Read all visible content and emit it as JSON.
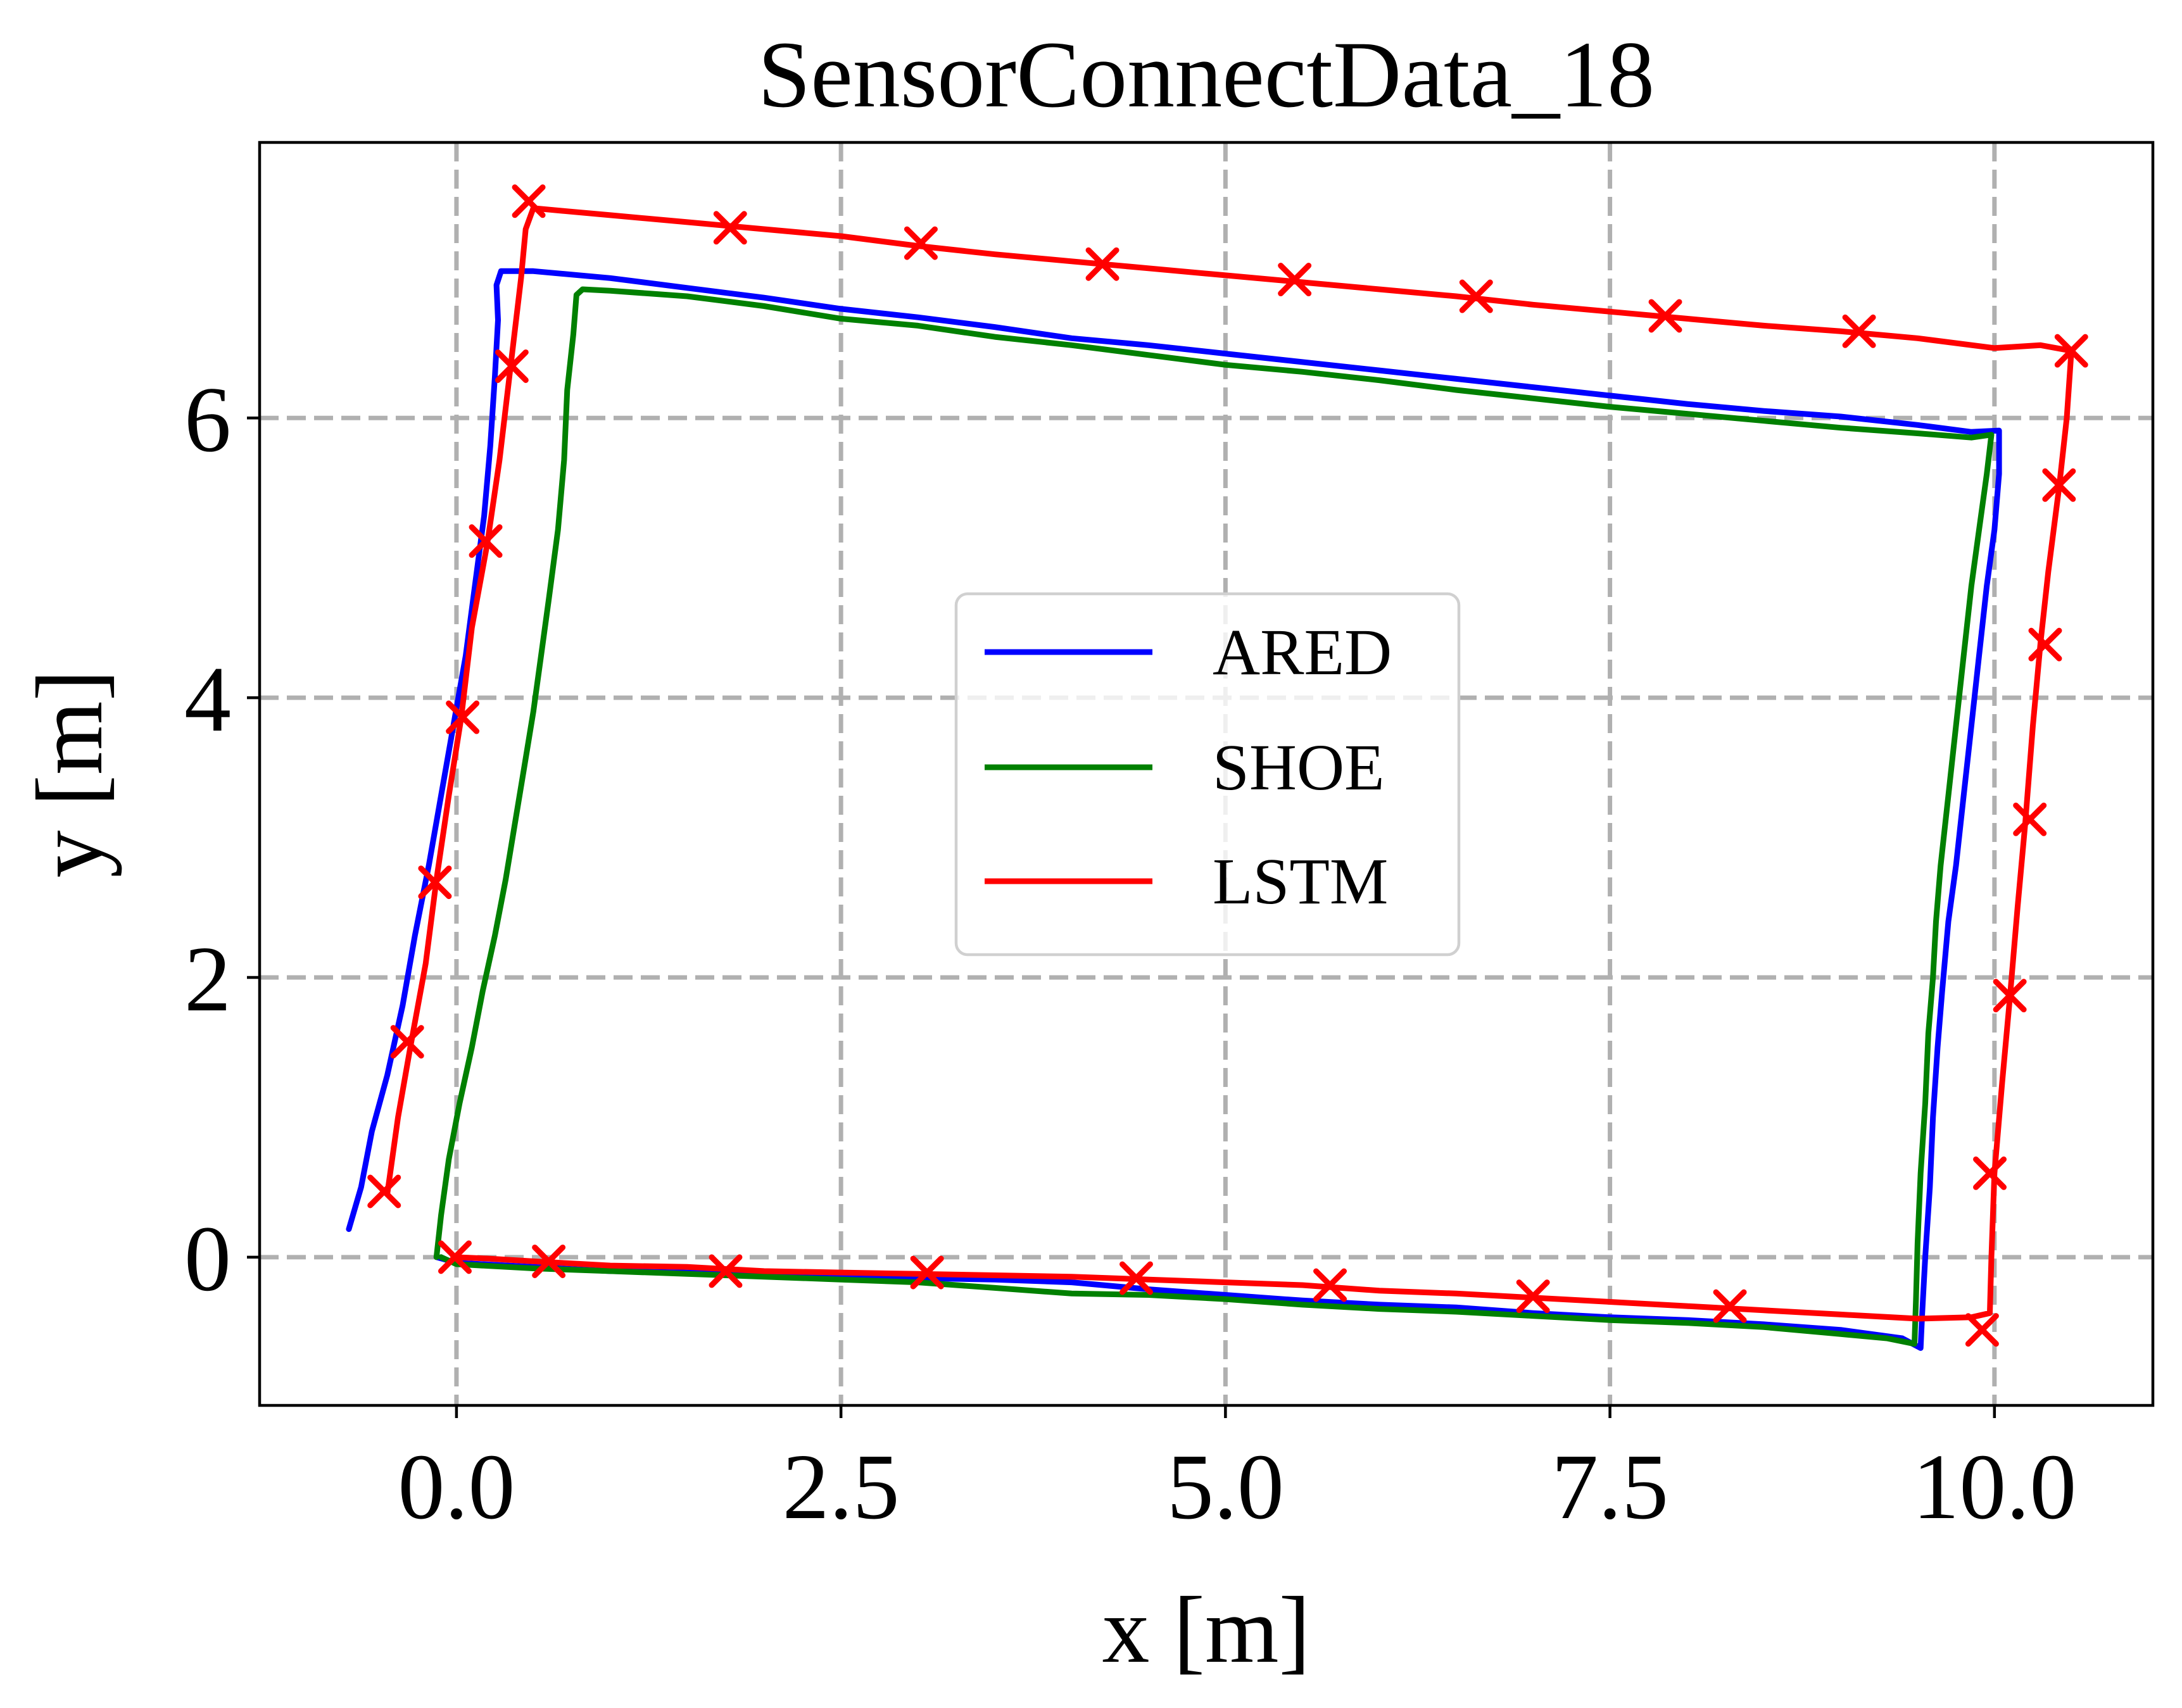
{
  "chart_data": {
    "type": "line",
    "title": "SensorConnectData_18",
    "xlabel": "x [m]",
    "ylabel": "y [m]",
    "xlim": [
      -1.28,
      11.03
    ],
    "ylim": [
      -1.06,
      7.97
    ],
    "xticks": [
      0.0,
      2.5,
      5.0,
      7.5,
      10.0
    ],
    "xtick_labels": [
      "0.0",
      "2.5",
      "5.0",
      "7.5",
      "10.0"
    ],
    "yticks": [
      0,
      2,
      4,
      6
    ],
    "ytick_labels": [
      "0",
      "2",
      "4",
      "6"
    ],
    "grid": true,
    "legend": "center",
    "series": [
      {
        "name": "ARED",
        "color": "#0000ff",
        "marker": "none",
        "points": [
          [
            -0.7,
            0.2
          ],
          [
            -0.62,
            0.5
          ],
          [
            -0.55,
            0.9
          ],
          [
            -0.45,
            1.3
          ],
          [
            -0.35,
            1.8
          ],
          [
            -0.27,
            2.3
          ],
          [
            -0.18,
            2.8
          ],
          [
            -0.1,
            3.3
          ],
          [
            -0.02,
            3.8
          ],
          [
            0.06,
            4.3
          ],
          [
            0.12,
            4.8
          ],
          [
            0.18,
            5.3
          ],
          [
            0.22,
            5.8
          ],
          [
            0.25,
            6.3
          ],
          [
            0.27,
            6.7
          ],
          [
            0.26,
            6.95
          ],
          [
            0.29,
            7.05
          ],
          [
            0.5,
            7.05
          ],
          [
            1.0,
            7.0
          ],
          [
            1.5,
            6.93
          ],
          [
            2.0,
            6.86
          ],
          [
            2.5,
            6.78
          ],
          [
            3.0,
            6.72
          ],
          [
            3.5,
            6.65
          ],
          [
            4.0,
            6.57
          ],
          [
            4.5,
            6.52
          ],
          [
            5.0,
            6.46
          ],
          [
            5.5,
            6.4
          ],
          [
            6.0,
            6.34
          ],
          [
            6.5,
            6.28
          ],
          [
            7.0,
            6.22
          ],
          [
            7.5,
            6.16
          ],
          [
            8.0,
            6.1
          ],
          [
            8.5,
            6.05
          ],
          [
            9.0,
            6.01
          ],
          [
            9.5,
            5.95
          ],
          [
            9.85,
            5.9
          ],
          [
            10.03,
            5.91
          ],
          [
            10.03,
            5.6
          ],
          [
            10.0,
            5.2
          ],
          [
            9.95,
            4.8
          ],
          [
            9.9,
            4.3
          ],
          [
            9.85,
            3.8
          ],
          [
            9.8,
            3.3
          ],
          [
            9.75,
            2.8
          ],
          [
            9.7,
            2.4
          ],
          [
            9.66,
            1.9
          ],
          [
            9.63,
            1.5
          ],
          [
            9.6,
            1.0
          ],
          [
            9.58,
            0.5
          ],
          [
            9.55,
            0.0
          ],
          [
            9.53,
            -0.4
          ],
          [
            9.52,
            -0.65
          ],
          [
            9.4,
            -0.58
          ],
          [
            9.0,
            -0.52
          ],
          [
            8.5,
            -0.48
          ],
          [
            8.0,
            -0.45
          ],
          [
            7.5,
            -0.43
          ],
          [
            7.0,
            -0.4
          ],
          [
            6.5,
            -0.36
          ],
          [
            6.0,
            -0.34
          ],
          [
            5.5,
            -0.31
          ],
          [
            5.0,
            -0.27
          ],
          [
            4.5,
            -0.23
          ],
          [
            4.0,
            -0.18
          ],
          [
            3.5,
            -0.16
          ],
          [
            3.0,
            -0.15
          ],
          [
            2.5,
            -0.13
          ],
          [
            2.0,
            -0.12
          ],
          [
            1.5,
            -0.11
          ],
          [
            1.0,
            -0.1
          ],
          [
            0.5,
            -0.07
          ],
          [
            0.0,
            -0.04
          ],
          [
            -0.13,
            0.0
          ]
        ]
      },
      {
        "name": "SHOE",
        "color": "#008000",
        "marker": "none",
        "points": [
          [
            -0.13,
            0.0
          ],
          [
            -0.1,
            0.3
          ],
          [
            -0.05,
            0.7
          ],
          [
            0.02,
            1.1
          ],
          [
            0.1,
            1.5
          ],
          [
            0.17,
            1.9
          ],
          [
            0.25,
            2.3
          ],
          [
            0.32,
            2.7
          ],
          [
            0.38,
            3.1
          ],
          [
            0.44,
            3.5
          ],
          [
            0.5,
            3.9
          ],
          [
            0.55,
            4.3
          ],
          [
            0.6,
            4.7
          ],
          [
            0.66,
            5.2
          ],
          [
            0.7,
            5.7
          ],
          [
            0.72,
            6.2
          ],
          [
            0.76,
            6.6
          ],
          [
            0.78,
            6.88
          ],
          [
            0.82,
            6.92
          ],
          [
            1.0,
            6.91
          ],
          [
            1.5,
            6.87
          ],
          [
            2.0,
            6.8
          ],
          [
            2.5,
            6.71
          ],
          [
            3.0,
            6.66
          ],
          [
            3.5,
            6.58
          ],
          [
            4.0,
            6.52
          ],
          [
            4.5,
            6.45
          ],
          [
            5.0,
            6.38
          ],
          [
            5.5,
            6.33
          ],
          [
            6.0,
            6.27
          ],
          [
            6.5,
            6.2
          ],
          [
            7.0,
            6.14
          ],
          [
            7.5,
            6.08
          ],
          [
            8.0,
            6.03
          ],
          [
            8.5,
            5.98
          ],
          [
            9.0,
            5.93
          ],
          [
            9.5,
            5.89
          ],
          [
            9.85,
            5.86
          ],
          [
            9.98,
            5.88
          ],
          [
            9.95,
            5.6
          ],
          [
            9.9,
            5.2
          ],
          [
            9.85,
            4.8
          ],
          [
            9.8,
            4.3
          ],
          [
            9.75,
            3.8
          ],
          [
            9.7,
            3.3
          ],
          [
            9.65,
            2.8
          ],
          [
            9.62,
            2.4
          ],
          [
            9.6,
            2.0
          ],
          [
            9.57,
            1.6
          ],
          [
            9.55,
            1.1
          ],
          [
            9.52,
            0.6
          ],
          [
            9.5,
            0.1
          ],
          [
            9.49,
            -0.3
          ],
          [
            9.48,
            -0.62
          ],
          [
            9.3,
            -0.58
          ],
          [
            9.0,
            -0.55
          ],
          [
            8.5,
            -0.5
          ],
          [
            8.0,
            -0.47
          ],
          [
            7.5,
            -0.45
          ],
          [
            7.0,
            -0.42
          ],
          [
            6.5,
            -0.39
          ],
          [
            6.0,
            -0.37
          ],
          [
            5.5,
            -0.34
          ],
          [
            5.0,
            -0.3
          ],
          [
            4.5,
            -0.27
          ],
          [
            4.0,
            -0.26
          ],
          [
            3.5,
            -0.22
          ],
          [
            3.0,
            -0.18
          ],
          [
            2.5,
            -0.16
          ],
          [
            2.0,
            -0.14
          ],
          [
            1.5,
            -0.12
          ],
          [
            1.0,
            -0.1
          ],
          [
            0.5,
            -0.08
          ],
          [
            0.0,
            -0.05
          ],
          [
            -0.1,
            0.0
          ]
        ]
      },
      {
        "name": "LSTM",
        "color": "#ff0000",
        "marker": "x",
        "points": [
          [
            -0.45,
            0.45
          ],
          [
            -0.38,
            1.0
          ],
          [
            -0.3,
            1.5
          ],
          [
            -0.2,
            2.1
          ],
          [
            -0.13,
            2.7
          ],
          [
            -0.05,
            3.3
          ],
          [
            0.03,
            3.85
          ],
          [
            0.1,
            4.5
          ],
          [
            0.2,
            5.1
          ],
          [
            0.28,
            5.7
          ],
          [
            0.35,
            6.35
          ],
          [
            0.42,
            7.0
          ],
          [
            0.45,
            7.35
          ],
          [
            0.5,
            7.5
          ],
          [
            0.7,
            7.48
          ],
          [
            1.0,
            7.45
          ],
          [
            1.5,
            7.4
          ],
          [
            2.0,
            7.35
          ],
          [
            2.5,
            7.3
          ],
          [
            3.0,
            7.23
          ],
          [
            3.5,
            7.17
          ],
          [
            4.0,
            7.12
          ],
          [
            4.5,
            7.07
          ],
          [
            5.0,
            7.02
          ],
          [
            5.5,
            6.97
          ],
          [
            6.0,
            6.92
          ],
          [
            6.5,
            6.87
          ],
          [
            7.0,
            6.81
          ],
          [
            7.5,
            6.76
          ],
          [
            8.0,
            6.71
          ],
          [
            8.5,
            6.66
          ],
          [
            9.0,
            6.62
          ],
          [
            9.5,
            6.57
          ],
          [
            10.0,
            6.5
          ],
          [
            10.3,
            6.52
          ],
          [
            10.5,
            6.48
          ],
          [
            10.47,
            6.0
          ],
          [
            10.42,
            5.5
          ],
          [
            10.35,
            4.9
          ],
          [
            10.3,
            4.4
          ],
          [
            10.25,
            3.8
          ],
          [
            10.2,
            3.1
          ],
          [
            10.15,
            2.5
          ],
          [
            10.1,
            1.85
          ],
          [
            10.05,
            1.25
          ],
          [
            10.0,
            0.6
          ],
          [
            9.98,
            0.0
          ],
          [
            9.97,
            -0.4
          ],
          [
            9.85,
            -0.43
          ],
          [
            9.5,
            -0.44
          ],
          [
            9.0,
            -0.41
          ],
          [
            8.5,
            -0.38
          ],
          [
            8.0,
            -0.35
          ],
          [
            7.5,
            -0.32
          ],
          [
            7.0,
            -0.29
          ],
          [
            6.5,
            -0.26
          ],
          [
            6.0,
            -0.24
          ],
          [
            5.5,
            -0.2
          ],
          [
            5.0,
            -0.18
          ],
          [
            4.5,
            -0.16
          ],
          [
            4.0,
            -0.14
          ],
          [
            3.5,
            -0.13
          ],
          [
            3.0,
            -0.12
          ],
          [
            2.5,
            -0.11
          ],
          [
            2.0,
            -0.1
          ],
          [
            1.5,
            -0.07
          ],
          [
            1.0,
            -0.06
          ],
          [
            0.5,
            -0.03
          ],
          [
            0.2,
            -0.01
          ],
          [
            -0.02,
            0.0
          ]
        ],
        "marker_points": [
          [
            -0.47,
            0.47
          ],
          [
            -0.32,
            1.54
          ],
          [
            -0.14,
            2.68
          ],
          [
            0.04,
            3.86
          ],
          [
            0.19,
            5.12
          ],
          [
            0.36,
            6.37
          ],
          [
            0.47,
            7.55
          ],
          [
            1.78,
            7.36
          ],
          [
            3.02,
            7.25
          ],
          [
            4.2,
            7.1
          ],
          [
            5.45,
            6.99
          ],
          [
            6.63,
            6.87
          ],
          [
            7.86,
            6.73
          ],
          [
            9.12,
            6.62
          ],
          [
            10.5,
            6.48
          ],
          [
            10.42,
            5.52
          ],
          [
            10.33,
            4.38
          ],
          [
            10.23,
            3.13
          ],
          [
            10.1,
            1.87
          ],
          [
            9.97,
            0.6
          ],
          [
            9.92,
            -0.52
          ],
          [
            8.28,
            -0.35
          ],
          [
            7.0,
            -0.28
          ],
          [
            5.68,
            -0.2
          ],
          [
            4.42,
            -0.15
          ],
          [
            3.06,
            -0.11
          ],
          [
            1.75,
            -0.1
          ],
          [
            0.6,
            -0.03
          ],
          [
            -0.01,
            0.0
          ]
        ]
      }
    ]
  }
}
